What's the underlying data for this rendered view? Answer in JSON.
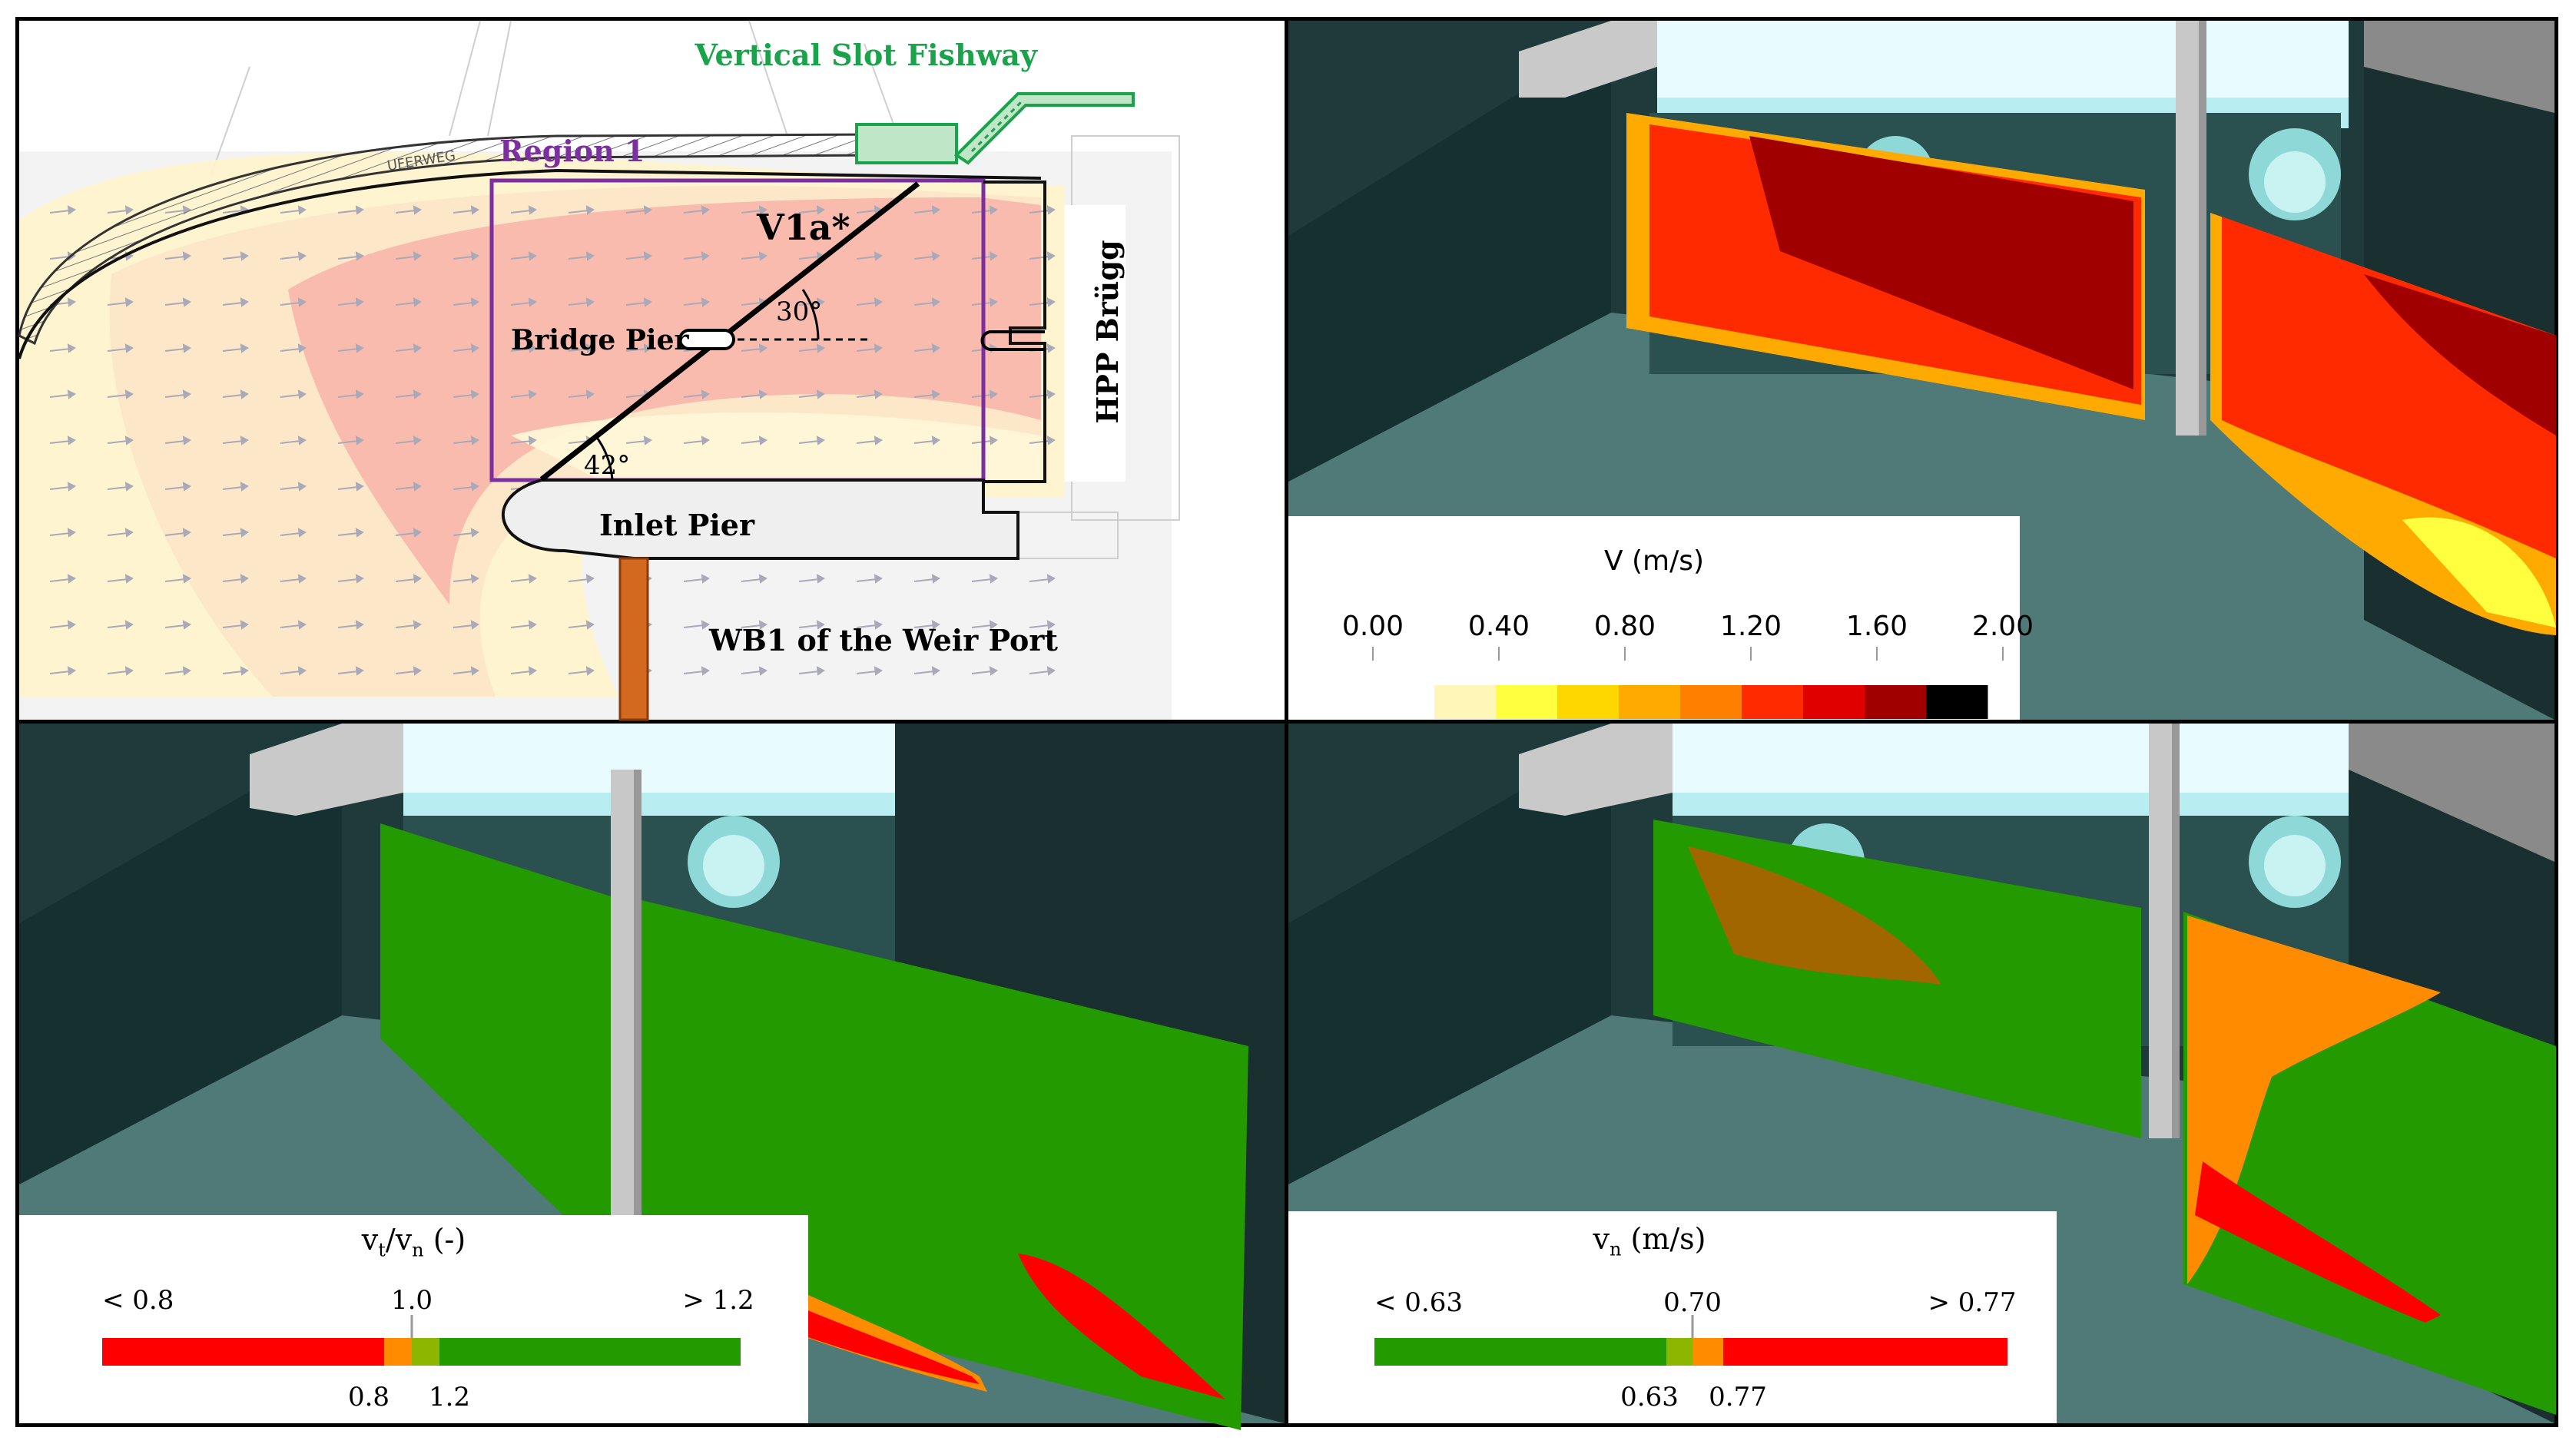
{
  "figure": {
    "map": {
      "fishway_label": "Vertical Slot Fishway",
      "region_label": "Region 1",
      "variant_label": "V1a*",
      "angle_top": "30°",
      "angle_bottom": "42°",
      "bridge_pier": "Bridge Pier",
      "inlet_pier": "Inlet Pier",
      "hpp": "HPP Brügg",
      "weir": "WB1 of the Weir Port",
      "uferweg": "UFERWEG",
      "colors": {
        "fishway": "#1aa34a",
        "region": "#7b2fa0",
        "weir_pier": "#d2691e"
      }
    },
    "velocity_panel": {
      "legend_title": "V (m/s)",
      "tick_labels": [
        "0.00",
        "0.40",
        "0.80",
        "1.20",
        "1.60",
        "2.00"
      ],
      "colors": [
        "#fff6b8",
        "#ffff40",
        "#ffd700",
        "#ffaa00",
        "#ff7f00",
        "#ff2a00",
        "#e00000",
        "#a00000",
        "#000000"
      ]
    },
    "ratio_panel": {
      "legend_title_main": "v",
      "legend_title_sub1": "t",
      "legend_title_slash": "/v",
      "legend_title_sub2": "n",
      "legend_title_unit": " (-)",
      "label_low": "< 0.8",
      "label_mid": "1.0",
      "label_high": "> 1.2",
      "below_left": "0.8",
      "below_right": "1.2",
      "colors": {
        "low": "#ff0000",
        "mid_low": "#ff8c00",
        "mid": "#8db600",
        "high": "#229a00"
      }
    },
    "normal_panel": {
      "legend_title_main": "v",
      "legend_title_sub": "n",
      "legend_title_unit": " (m/s)",
      "label_low": "< 0.63",
      "label_mid": "0.70",
      "label_high": "> 0.77",
      "below_left": "0.63",
      "below_right": "0.77",
      "colors": {
        "low": "#229a00",
        "mid_low": "#8db600",
        "mid": "#ff8c00",
        "high": "#ff0000"
      }
    }
  }
}
